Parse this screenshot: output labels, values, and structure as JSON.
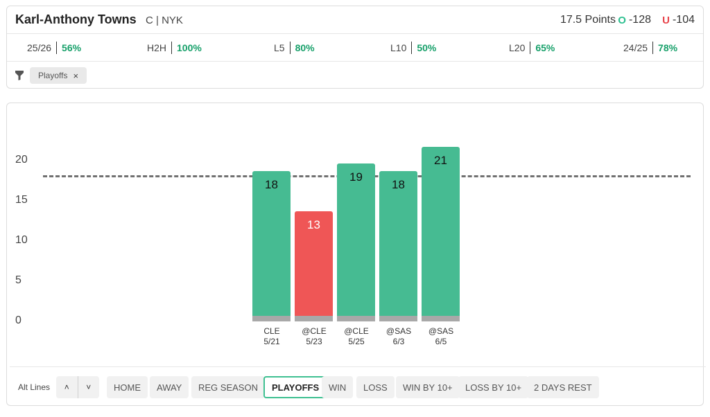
{
  "player": {
    "name": "Karl-Anthony Towns",
    "meta": "C | NYK"
  },
  "line": {
    "label": "17.5 Points",
    "over_mark": "O",
    "over_odds": "-128",
    "under_mark": "U",
    "under_odds": "-104"
  },
  "splits": [
    {
      "label": "25/26",
      "value": "56%"
    },
    {
      "label": "H2H",
      "value": "100%"
    },
    {
      "label": "L5",
      "value": "80%"
    },
    {
      "label": "L10",
      "value": "50%"
    },
    {
      "label": "L20",
      "value": "65%"
    },
    {
      "label": "24/25",
      "value": "78%"
    }
  ],
  "filter": {
    "chip": "Playoffs",
    "chip_close": "×",
    "icon": "filter-icon"
  },
  "colors": {
    "over": "#46bb92",
    "under": "#ef5656",
    "base": "#a8a8a8",
    "accent": "#17a06a"
  },
  "chart_data": {
    "type": "bar",
    "y_ticks": [
      "20",
      "15",
      "10",
      "5",
      "0"
    ],
    "ylim": [
      0,
      20
    ],
    "threshold": 17.5,
    "categories": [
      {
        "opponent": "CLE",
        "date": "5/21"
      },
      {
        "opponent": "@CLE",
        "date": "5/23"
      },
      {
        "opponent": "@CLE",
        "date": "5/25"
      },
      {
        "opponent": "@SAS",
        "date": "6/3"
      },
      {
        "opponent": "@SAS",
        "date": "6/5"
      }
    ],
    "values": [
      18,
      13,
      19,
      18,
      21
    ]
  },
  "controls": {
    "alt_lines": "Alt Lines",
    "up_icon": "˄",
    "down_icon": "˅",
    "buttons": [
      "HOME",
      "AWAY",
      "REG SEASON",
      "PLAYOFFS",
      "WIN",
      "LOSS",
      "WIN BY 10+",
      "LOSS BY 10+",
      "2 DAYS REST"
    ],
    "active": "PLAYOFFS"
  }
}
